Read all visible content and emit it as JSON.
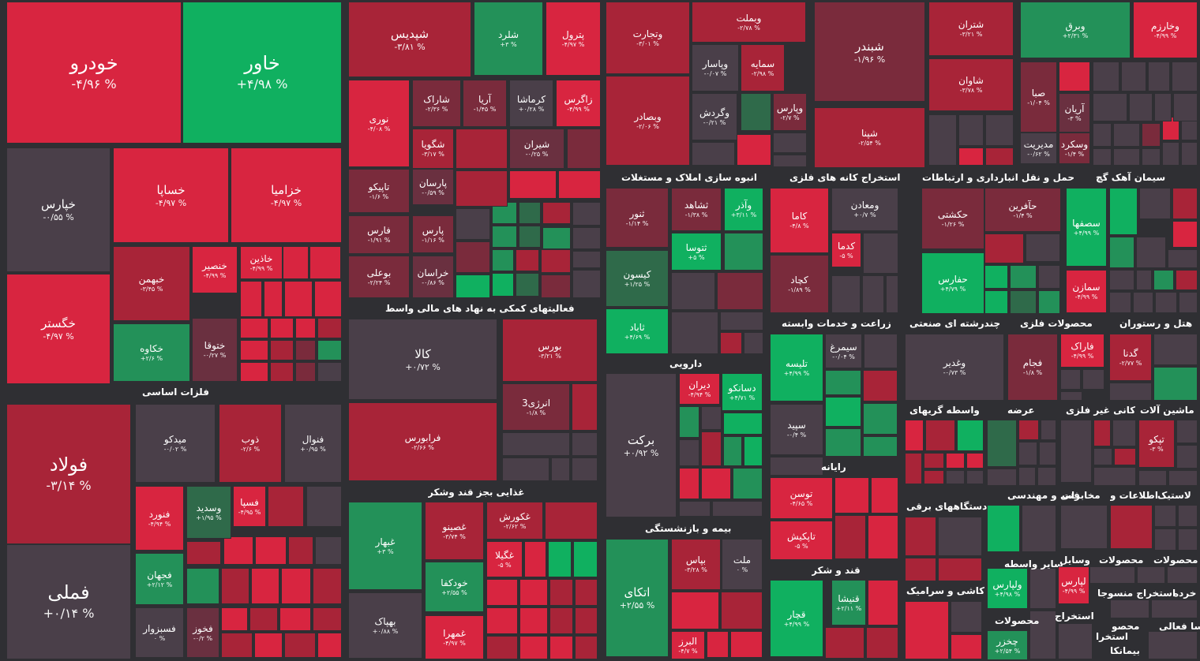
{
  "colors": {
    "background": "#2f2f33",
    "neutral": "#4a3f49",
    "up_strong": "#10b060",
    "up": "#239159",
    "up_weak": "#2f6a4a",
    "down_strong": "#d82540",
    "down": "#a82438",
    "down_weak": "#7a2b3c",
    "down_muted": "#6a3040"
  },
  "sectors": [
    {
      "label": "فلزات اساسی"
    },
    {
      "label": "فعالیتهای کمکی به نهاد های مالی واسط"
    },
    {
      "label": "انبوه سازی املاک و مستغلات"
    },
    {
      "label": "استخراج کانه های فلزی"
    },
    {
      "label": "حمل و نقل انبارداری و ارتباطات"
    },
    {
      "label": "سیمان آهک گچ"
    },
    {
      "label": "زراعت و خدمات وابسته"
    },
    {
      "label": "چندرشته ای صنعتی"
    },
    {
      "label": "محصولات فلزی"
    },
    {
      "label": "هتل و رستوران"
    },
    {
      "label": "دارویی"
    },
    {
      "label": "غذایی بجز قند وشکر"
    },
    {
      "label": "واسطه گریهای"
    },
    {
      "label": "عرضه"
    },
    {
      "label": "کانی غیر فلزی"
    },
    {
      "label": "ماشین آلات"
    },
    {
      "label": "بیمه و بازنشستگی"
    },
    {
      "label": "رایانه"
    },
    {
      "label": "دستگاههای برقی"
    },
    {
      "label": "فنی و مهندسی"
    },
    {
      "label": "اطلاعات و"
    },
    {
      "label": "مخابرات"
    },
    {
      "label": "لاستیک"
    },
    {
      "label": "قند و شکر"
    },
    {
      "label": "سایر واسطه"
    },
    {
      "label": "وسایل"
    },
    {
      "label": "محصولات"
    },
    {
      "label": "محصولات"
    },
    {
      "label": "کاشی و سرامیک"
    },
    {
      "label": "محصولات"
    },
    {
      "label": "استخراج"
    },
    {
      "label": "استخراج منسوجا"
    },
    {
      "label": "خرده"
    },
    {
      "label": "سا فعالی"
    },
    {
      "label": "محصو"
    },
    {
      "label": "استخرا"
    },
    {
      "label": "بیمانکا"
    }
  ],
  "tiles": [
    {
      "name": "خودرو",
      "pct": "-۴/۹۶ %",
      "tone": "down_strong"
    },
    {
      "name": "خاور",
      "pct": "+۴/۹۸ %",
      "tone": "up_strong"
    },
    {
      "name": "خپارس",
      "pct": "-۰/۵۵ %",
      "tone": "neutral"
    },
    {
      "name": "خساپا",
      "pct": "-۴/۹۷ %",
      "tone": "down_strong"
    },
    {
      "name": "خزامیا",
      "pct": "-۴/۹۷ %",
      "tone": "down_strong"
    },
    {
      "name": "خگستر",
      "pct": "-۴/۹۷ %",
      "tone": "down_strong"
    },
    {
      "name": "خبهمن",
      "pct": "-۳/۴۵ %",
      "tone": "down"
    },
    {
      "name": "خنصیر",
      "pct": "-۴/۹۹ %",
      "tone": "down_strong"
    },
    {
      "name": "خاذین",
      "pct": "-۴/۹۹ %",
      "tone": "down_strong"
    },
    {
      "name": "خکاوه",
      "pct": "+۲/۶ %",
      "tone": "up"
    },
    {
      "name": "ختوقا",
      "pct": "-۰/۲۷ %",
      "tone": "down_muted"
    },
    {
      "name": "فولاد",
      "pct": "-۳/۱۴ %",
      "tone": "down"
    },
    {
      "name": "میدکو",
      "pct": "-۰/۰۲ %",
      "tone": "neutral"
    },
    {
      "name": "ذوب",
      "pct": "-۲/۶ %",
      "tone": "down"
    },
    {
      "name": "فنوال",
      "pct": "+۰/۹۵ %",
      "tone": "neutral"
    },
    {
      "name": "فنورد",
      "pct": "-۴/۹۴ %",
      "tone": "down_strong"
    },
    {
      "name": "وسدید",
      "pct": "+۱/۹۵ %",
      "tone": "up_weak"
    },
    {
      "name": "فسپا",
      "pct": "-۴/۹۵ %",
      "tone": "down_strong"
    },
    {
      "name": "فملی",
      "pct": "+۰/۱۴ %",
      "tone": "neutral"
    },
    {
      "name": "فجهان",
      "pct": "+۲/۱۲ %",
      "tone": "up"
    },
    {
      "name": "فسبزوار",
      "pct": "۰ %",
      "tone": "neutral"
    },
    {
      "name": "فخوز",
      "pct": "-۰/۲ %",
      "tone": "down_muted"
    },
    {
      "name": "شپدیس",
      "pct": "-۳/۸۱ %",
      "tone": "down"
    },
    {
      "name": "شلرد",
      "pct": "+۳ %",
      "tone": "up"
    },
    {
      "name": "پترول",
      "pct": "-۴/۹۷ %",
      "tone": "down_strong"
    },
    {
      "name": "نوری",
      "pct": "-۴/۰۸ %",
      "tone": "down_strong"
    },
    {
      "name": "شاراک",
      "pct": "-۲/۳۶ %",
      "tone": "down_weak"
    },
    {
      "name": "آریا",
      "pct": "-۱/۴۵ %",
      "tone": "down_weak"
    },
    {
      "name": "کرماشا",
      "pct": "+۰/۲۸ %",
      "tone": "neutral"
    },
    {
      "name": "زاگرس",
      "pct": "-۴/۹۹ %",
      "tone": "down_strong"
    },
    {
      "name": "شگویا",
      "pct": "-۳/۱۷ %",
      "tone": "down"
    },
    {
      "name": "شیران",
      "pct": "-۰/۲۵ %",
      "tone": "down_muted"
    },
    {
      "name": "تاپیکو",
      "pct": "-۱/۶ %",
      "tone": "down_weak"
    },
    {
      "name": "پارسان",
      "pct": "-۰/۵۹ %",
      "tone": "down_muted"
    },
    {
      "name": "فارس",
      "pct": "-۱/۹۱ %",
      "tone": "down_weak"
    },
    {
      "name": "پارس",
      "pct": "-۱/۱۶ %",
      "tone": "down_weak"
    },
    {
      "name": "بوعلی",
      "pct": "-۲/۲۴ %",
      "tone": "down_weak"
    },
    {
      "name": "خراسان",
      "pct": "-۰/۸۶ %",
      "tone": "down_muted"
    },
    {
      "name": "کالا",
      "pct": "+۰/۷۲ %",
      "tone": "neutral"
    },
    {
      "name": "بورس",
      "pct": "-۳/۲۱ %",
      "tone": "down"
    },
    {
      "name": "انرژی3",
      "pct": "-۱/۸ %",
      "tone": "down_weak"
    },
    {
      "name": "فرابورس",
      "pct": "-۲/۶۶ %",
      "tone": "down"
    },
    {
      "name": "غبهار",
      "pct": "+۳ %",
      "tone": "up"
    },
    {
      "name": "غصینو",
      "pct": "-۳/۷۴ %",
      "tone": "down"
    },
    {
      "name": "غکورش",
      "pct": "-۲/۶۲ %",
      "tone": "down"
    },
    {
      "name": "غگیلا",
      "pct": "-۵ %",
      "tone": "down_strong"
    },
    {
      "name": "خودکفا",
      "pct": "+۲/۵۵ %",
      "tone": "up"
    },
    {
      "name": "بهپاک",
      "pct": "+۰/۸۸ %",
      "tone": "neutral"
    },
    {
      "name": "غمهرا",
      "pct": "-۴/۹۷ %",
      "tone": "down_strong"
    },
    {
      "name": "وتجارت",
      "pct": "-۳/۰۱ %",
      "tone": "down"
    },
    {
      "name": "وبملت",
      "pct": "-۲/۷۸ %",
      "tone": "down"
    },
    {
      "name": "شبندر",
      "pct": "-۱/۹۶ %",
      "tone": "down_weak"
    },
    {
      "name": "شتران",
      "pct": "-۳/۲۱ %",
      "tone": "down"
    },
    {
      "name": "وبرق",
      "pct": "+۲/۳۱ %",
      "tone": "up"
    },
    {
      "name": "وخارزم",
      "pct": "-۴/۹۹ %",
      "tone": "down_strong"
    },
    {
      "name": "وپاسار",
      "pct": "-۰/۰۷ %",
      "tone": "neutral"
    },
    {
      "name": "سمایه",
      "pct": "-۲/۹۸ %",
      "tone": "down"
    },
    {
      "name": "شاوان",
      "pct": "-۳/۷۸ %",
      "tone": "down"
    },
    {
      "name": "وبصادر",
      "pct": "-۲/۰۶ %",
      "tone": "down"
    },
    {
      "name": "وگردش",
      "pct": "-۰/۲۱ %",
      "tone": "neutral"
    },
    {
      "name": "وپارس",
      "pct": "-۲/۷ %",
      "tone": "down_weak"
    },
    {
      "name": "صبا",
      "pct": "-۱/۰۴ %",
      "tone": "down_weak"
    },
    {
      "name": "آریان",
      "pct": "-۳ %",
      "tone": "down_muted"
    },
    {
      "name": "شپنا",
      "pct": "-۲/۵۴ %",
      "tone": "down"
    },
    {
      "name": "مدیریت",
      "pct": "-۰/۶۲ %",
      "tone": "neutral"
    },
    {
      "name": "وسکرد",
      "pct": "-۱/۴ %",
      "tone": "down_weak"
    },
    {
      "name": "ثنور",
      "pct": "-۱/۱۴ %",
      "tone": "down_weak"
    },
    {
      "name": "ثشاهد",
      "pct": "-۱/۳۸ %",
      "tone": "down_weak"
    },
    {
      "name": "وآذر",
      "pct": "+۳/۱۱ %",
      "tone": "up_strong"
    },
    {
      "name": "ثتوسا",
      "pct": "+۵ %",
      "tone": "up_strong"
    },
    {
      "name": "کیسون",
      "pct": "+۱/۲۵ %",
      "tone": "up_weak"
    },
    {
      "name": "ثاباد",
      "pct": "+۴/۶۹ %",
      "tone": "up_strong"
    },
    {
      "name": "کاما",
      "pct": "-۴/۸ %",
      "tone": "down_strong"
    },
    {
      "name": "ومعادن",
      "pct": "+۰/۷ %",
      "tone": "neutral"
    },
    {
      "name": "کدما",
      "pct": "-۵ %",
      "tone": "down_strong"
    },
    {
      "name": "کچاد",
      "pct": "-۱/۸۹ %",
      "tone": "down_weak"
    },
    {
      "name": "حکشتی",
      "pct": "-۱/۲۶ %",
      "tone": "down_weak"
    },
    {
      "name": "حآفرین",
      "pct": "-۱/۴ %",
      "tone": "down_weak"
    },
    {
      "name": "حفارس",
      "pct": "+۴/۷۹ %",
      "tone": "up_strong"
    },
    {
      "name": "سصفها",
      "pct": "+۴/۹۹ %",
      "tone": "up_strong"
    },
    {
      "name": "سمازن",
      "pct": "-۴/۹۹ %",
      "tone": "down_strong"
    },
    {
      "name": "تلیسه",
      "pct": "+۴/۹۹ %",
      "tone": "up_strong"
    },
    {
      "name": "سیمرغ",
      "pct": "-۰/۰۴ %",
      "tone": "neutral"
    },
    {
      "name": "سپید",
      "pct": "-۰/۴ %",
      "tone": "neutral"
    },
    {
      "name": "وغدیر",
      "pct": "-۰/۷۳ %",
      "tone": "neutral"
    },
    {
      "name": "فجام",
      "pct": "-۱/۸ %",
      "tone": "down_weak"
    },
    {
      "name": "فاراک",
      "pct": "-۴/۹۹ %",
      "tone": "down_strong"
    },
    {
      "name": "گدنا",
      "pct": "-۲/۷۷ %",
      "tone": "down"
    },
    {
      "name": "برکت",
      "pct": "+۰/۹۲ %",
      "tone": "neutral"
    },
    {
      "name": "دیران",
      "pct": "-۴/۹۴ %",
      "tone": "down_strong"
    },
    {
      "name": "دسانکو",
      "pct": "+۴/۷۱ %",
      "tone": "up_strong"
    },
    {
      "name": "تپکو",
      "pct": "-۳ %",
      "tone": "down"
    },
    {
      "name": "اتکای",
      "pct": "+۲/۵۵ %",
      "tone": "up"
    },
    {
      "name": "بپاس",
      "pct": "-۳/۲۸ %",
      "tone": "down"
    },
    {
      "name": "ملت",
      "pct": "۰ %",
      "tone": "neutral"
    },
    {
      "name": "البرز",
      "pct": "-۴/۷ %",
      "tone": "down_strong"
    },
    {
      "name": "توسن",
      "pct": "-۴/۶۵ %",
      "tone": "down_strong"
    },
    {
      "name": "تاپکیش",
      "pct": "-۵ %",
      "tone": "down_strong"
    },
    {
      "name": "قنیشا",
      "pct": "+۲/۱۱ %",
      "tone": "up"
    },
    {
      "name": "قچار",
      "pct": "+۴/۹۹ %",
      "tone": "up_strong"
    },
    {
      "name": "ولپارس",
      "pct": "+۴/۹۸ %",
      "tone": "up_strong"
    },
    {
      "name": "چخزر",
      "pct": "+۲/۵۴ %",
      "tone": "up"
    },
    {
      "name": "لپارس",
      "pct": "-۴/۹۹ %",
      "tone": "down_strong"
    }
  ]
}
